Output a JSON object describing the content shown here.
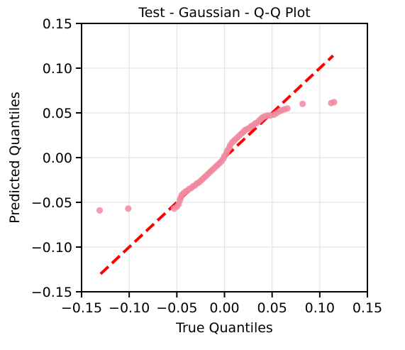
{
  "chart_data": {
    "type": "scatter",
    "title": "Test - Gaussian - Q-Q Plot",
    "xlabel": "True Quantiles",
    "ylabel": "Predicted Quantiles",
    "xlim": [
      -0.15,
      0.15
    ],
    "ylim": [
      -0.15,
      0.15
    ],
    "xticks": [
      -0.15,
      -0.1,
      -0.05,
      0.0,
      0.05,
      0.1,
      0.15
    ],
    "yticks": [
      -0.15,
      -0.1,
      -0.05,
      0.0,
      0.05,
      0.1,
      0.15
    ],
    "xtick_labels": [
      "−0.15",
      "−0.10",
      "−0.05",
      "0.00",
      "0.05",
      "0.10",
      "0.15"
    ],
    "ytick_labels": [
      "−0.15",
      "−0.10",
      "−0.05",
      "0.00",
      "0.05",
      "0.10",
      "0.15"
    ],
    "grid": true,
    "reference_line": {
      "style": "dashed",
      "color": "#ff0000",
      "x": [
        -0.13,
        0.114
      ],
      "y": [
        -0.13,
        0.114
      ]
    },
    "points_color": "#f08aa0",
    "points": [
      [
        -0.131,
        -0.059
      ],
      [
        -0.101,
        -0.057
      ],
      [
        -0.053,
        -0.057
      ],
      [
        -0.05,
        -0.055
      ],
      [
        -0.048,
        -0.052
      ],
      [
        -0.047,
        -0.048
      ],
      [
        -0.046,
        -0.045
      ],
      [
        -0.045,
        -0.042
      ],
      [
        -0.043,
        -0.04
      ],
      [
        -0.041,
        -0.038
      ],
      [
        -0.039,
        -0.037
      ],
      [
        -0.037,
        -0.035
      ],
      [
        -0.035,
        -0.034
      ],
      [
        -0.033,
        -0.032
      ],
      [
        -0.031,
        -0.031
      ],
      [
        -0.029,
        -0.029
      ],
      [
        -0.027,
        -0.028
      ],
      [
        -0.025,
        -0.026
      ],
      [
        -0.023,
        -0.024
      ],
      [
        -0.021,
        -0.022
      ],
      [
        -0.019,
        -0.02
      ],
      [
        -0.017,
        -0.018
      ],
      [
        -0.015,
        -0.016
      ],
      [
        -0.013,
        -0.014
      ],
      [
        -0.011,
        -0.012
      ],
      [
        -0.009,
        -0.01
      ],
      [
        -0.007,
        -0.008
      ],
      [
        -0.005,
        -0.006
      ],
      [
        -0.003,
        -0.004
      ],
      [
        -0.001,
        -0.001
      ],
      [
        0.0,
        0.002
      ],
      [
        0.002,
        0.005
      ],
      [
        0.003,
        0.008
      ],
      [
        0.005,
        0.011
      ],
      [
        0.006,
        0.014
      ],
      [
        0.008,
        0.017
      ],
      [
        0.01,
        0.019
      ],
      [
        0.012,
        0.021
      ],
      [
        0.014,
        0.023
      ],
      [
        0.016,
        0.025
      ],
      [
        0.018,
        0.027
      ],
      [
        0.02,
        0.029
      ],
      [
        0.022,
        0.031
      ],
      [
        0.024,
        0.032
      ],
      [
        0.026,
        0.033
      ],
      [
        0.028,
        0.035
      ],
      [
        0.03,
        0.036
      ],
      [
        0.032,
        0.038
      ],
      [
        0.034,
        0.039
      ],
      [
        0.036,
        0.041
      ],
      [
        0.038,
        0.043
      ],
      [
        0.04,
        0.045
      ],
      [
        0.042,
        0.046
      ],
      [
        0.045,
        0.047
      ],
      [
        0.048,
        0.047
      ],
      [
        0.052,
        0.048
      ],
      [
        0.055,
        0.05
      ],
      [
        0.058,
        0.052
      ],
      [
        0.06,
        0.053
      ],
      [
        0.063,
        0.054
      ],
      [
        0.066,
        0.055
      ],
      [
        0.082,
        0.06
      ],
      [
        0.112,
        0.061
      ],
      [
        0.115,
        0.062
      ]
    ]
  }
}
